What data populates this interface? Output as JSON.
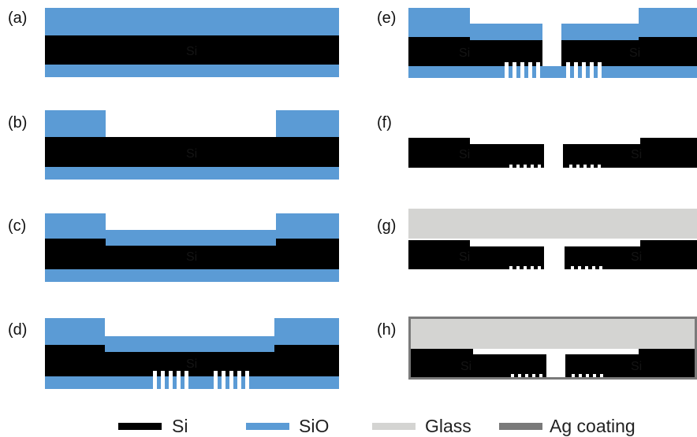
{
  "colors": {
    "si": "#000000",
    "sio": "#5b9bd5",
    "glass": "#d4d4d2",
    "ag": "#7a7a7a",
    "background": "#ffffff"
  },
  "panels": {
    "a": {
      "label": "(a)",
      "si_text": "Si"
    },
    "b": {
      "label": "(b)",
      "si_text": "Si"
    },
    "c": {
      "label": "(c)",
      "si_text": "Si"
    },
    "d": {
      "label": "(d)",
      "si_text": "Si"
    },
    "e": {
      "label": "(e)",
      "si_text_left": "Si",
      "si_text_right": "Si"
    },
    "f": {
      "label": "(f)",
      "si_text_left": "Si",
      "si_text_right": "Si"
    },
    "g": {
      "label": "(g)",
      "si_text_left": "Si",
      "si_text_right": "Si"
    },
    "h": {
      "label": "(h)",
      "si_text_left": "Si",
      "si_text_right": "Si"
    }
  },
  "legend": {
    "si": "Si",
    "sio": "SiO",
    "glass": "Glass",
    "ag": "Ag coating"
  }
}
